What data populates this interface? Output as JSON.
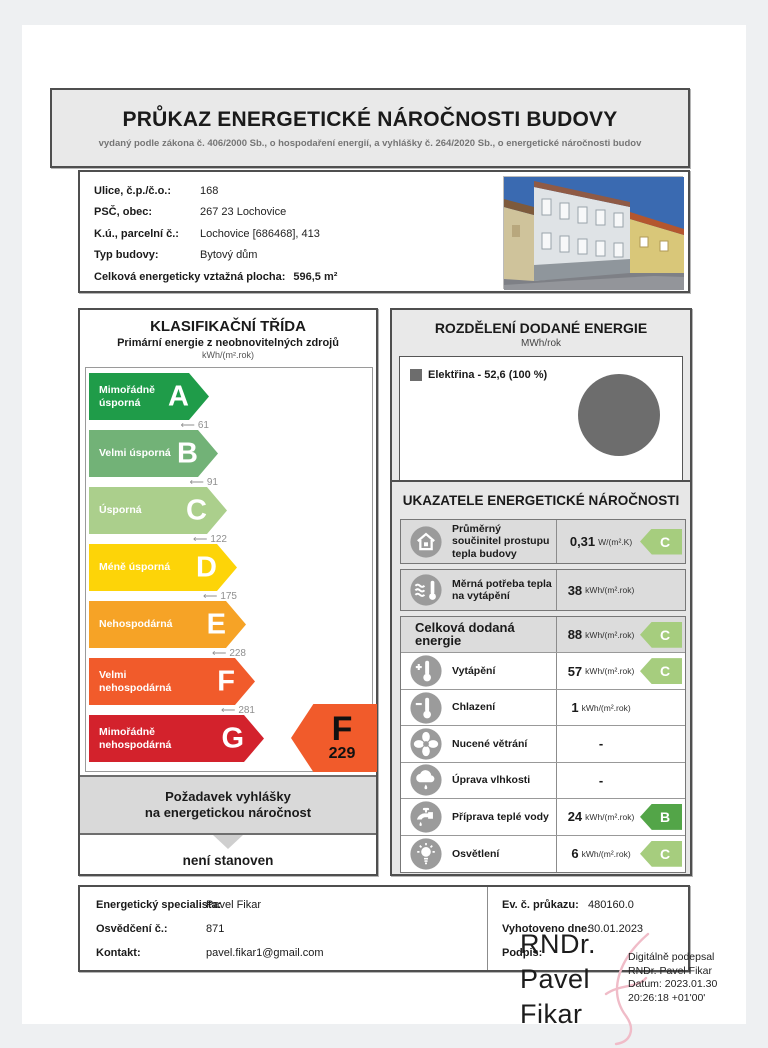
{
  "header": {
    "title": "PRŮKAZ ENERGETICKÉ NÁROČNOSTI BUDOVY",
    "subtitle": "vydaný podle zákona č. 406/2000 Sb., o hospodaření energií, a vyhlášky č. 264/2020 Sb., o energetické náročnosti budov"
  },
  "building": {
    "rows": [
      {
        "label": "Ulice, č.p./č.o.:",
        "value": "168"
      },
      {
        "label": "PSČ, obec:",
        "value": "267 23 Lochovice"
      },
      {
        "label": "K.ú., parcelní č.:",
        "value": "Lochovice [686468], 413"
      },
      {
        "label": "Typ budovy:",
        "value": "Bytový dům"
      },
      {
        "label": "Celková energeticky vztažná plocha:",
        "value": "596,5 m²"
      }
    ]
  },
  "classification": {
    "title": "KLASIFIKAČNÍ TŘÍDA",
    "subtitle": "Primární energie z neobnovitelných zdrojů",
    "unit": "kWh/(m².rok)",
    "classes": [
      {
        "letter": "A",
        "label": "Mimořádně úsporná",
        "threshold": "61",
        "color": "#1f9c49"
      },
      {
        "letter": "B",
        "label": "Velmi úsporná",
        "threshold": "91",
        "color": "#72b277"
      },
      {
        "letter": "C",
        "label": "Úsporná",
        "threshold": "122",
        "color": "#abcf8c"
      },
      {
        "letter": "D",
        "label": "Méně úsporná",
        "threshold": "175",
        "color": "#fdd408"
      },
      {
        "letter": "E",
        "label": "Nehospodárná",
        "threshold": "228",
        "color": "#f6a326"
      },
      {
        "letter": "F",
        "label": "Velmi nehospodárná",
        "threshold": "281",
        "color": "#f15b2b"
      },
      {
        "letter": "G",
        "label": "Mimořádně nehospodárná",
        "threshold": "",
        "color": "#d3222c"
      }
    ],
    "current": {
      "letter": "F",
      "value": "229",
      "color": "#f15b2b"
    },
    "requirement": {
      "line1": "Požadavek vyhlášky",
      "line2": "na energetickou náročnost",
      "value": "není stanoven"
    }
  },
  "energy_distribution": {
    "title": "ROZDĚLENÍ DODANÉ ENERGIE",
    "unit": "MWh/rok",
    "legend": "Elektřina - 52,6 (100 %)",
    "chart_data": {
      "type": "pie",
      "slices": [
        {
          "label": "Elektřina",
          "value": 52.6,
          "percent": 100,
          "color": "#6d6d6d"
        }
      ],
      "title": "ROZDĚLENÍ DODANÉ ENERGIE",
      "unit": "MWh/rok"
    }
  },
  "indicators": {
    "title": "UKAZATELE ENERGETICKÉ NÁROČNOSTI",
    "badge_colors": {
      "B": "#53a548",
      "C": "#a6cd7e"
    },
    "rows": [
      {
        "icon": "house",
        "label": "Průměrný součinitel prostupu tepla budovy",
        "value": "0,31",
        "unit": "W/(m².K)",
        "badge": "C"
      },
      {
        "icon": "heat",
        "label": "Měrná potřeba tepla na vytápění",
        "value": "38",
        "unit": "kWh/(m².rok)",
        "badge": ""
      },
      {
        "icon": "",
        "label": "Celková dodaná energie",
        "value": "88",
        "unit": "kWh/(m².rok)",
        "badge": "C"
      },
      {
        "icon": "thermo-plus",
        "label": "Vytápění",
        "value": "57",
        "unit": "kWh/(m².rok)",
        "badge": "C"
      },
      {
        "icon": "thermo-minus",
        "label": "Chlazení",
        "value": "1",
        "unit": "kWh/(m².rok)",
        "badge": ""
      },
      {
        "icon": "fan",
        "label": "Nucené větrání",
        "value": "-",
        "unit": "",
        "badge": ""
      },
      {
        "icon": "humidity",
        "label": "Úprava vlhkosti",
        "value": "-",
        "unit": "",
        "badge": ""
      },
      {
        "icon": "faucet",
        "label": "Příprava teplé vody",
        "value": "24",
        "unit": "kWh/(m².rok)",
        "badge": "B"
      },
      {
        "icon": "bulb",
        "label": "Osvětlení",
        "value": "6",
        "unit": "kWh/(m².rok)",
        "badge": "C"
      }
    ]
  },
  "footer": {
    "left": [
      {
        "label": "Energetický specialista:",
        "value": "Pavel Fikar"
      },
      {
        "label": "Osvědčení č.:",
        "value": "871"
      },
      {
        "label": "Kontakt:",
        "value": "pavel.fikar1@gmail.com"
      }
    ],
    "right": [
      {
        "label": "Ev. č. průkazu:",
        "value": "480160.0"
      },
      {
        "label": "Vyhotoveno dne:",
        "value": "30.01.2023"
      },
      {
        "label": "Podpis:",
        "value": ""
      }
    ],
    "signature": {
      "name_lines": [
        "RNDr.",
        "Pavel",
        "Fikar"
      ],
      "digital_lines": [
        "Digitálně podepsal",
        "RNDr. Pavel Fikar",
        "Datum: 2023.01.30",
        "20:26:18 +01'00'"
      ]
    }
  }
}
